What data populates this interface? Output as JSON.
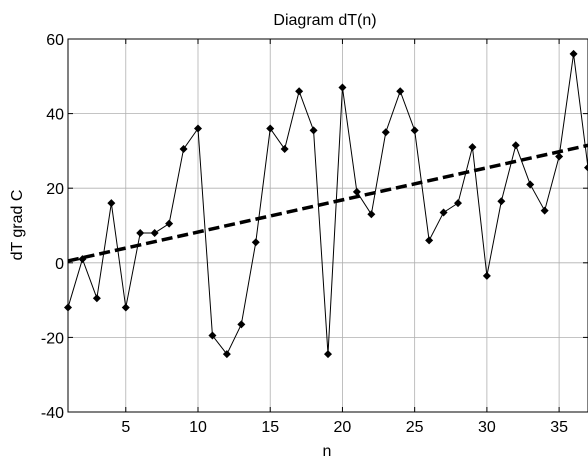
{
  "chart_data": {
    "type": "line",
    "title": "Diagram dT(n)",
    "xlabel": "n",
    "ylabel": "dT grad C",
    "xlim": [
      1,
      37
    ],
    "ylim": [
      -40,
      60
    ],
    "xticks": [
      5,
      10,
      15,
      20,
      25,
      30,
      35
    ],
    "yticks": [
      -40,
      -20,
      0,
      20,
      40,
      60
    ],
    "grid": true,
    "legend": false,
    "series": [
      {
        "style": "solid-with-diamond-markers",
        "color": "#000000",
        "x": [
          1,
          2,
          3,
          4,
          5,
          6,
          7,
          8,
          9,
          10,
          11,
          12,
          13,
          14,
          15,
          16,
          17,
          18,
          19,
          20,
          21,
          22,
          23,
          24,
          25,
          26,
          27,
          28,
          29,
          30,
          31,
          32,
          33,
          34,
          35,
          36,
          37
        ],
        "y": [
          -12,
          1,
          -9.5,
          16,
          -12,
          8,
          8,
          10.5,
          30.5,
          36,
          -19.5,
          -24.5,
          -16.5,
          5.5,
          36,
          30.5,
          46,
          35.5,
          -24.5,
          47,
          19,
          13,
          35,
          46,
          35.5,
          6,
          13.5,
          16,
          31,
          -3.5,
          16.5,
          31.5,
          21,
          14,
          28.5,
          56,
          25.5
        ]
      },
      {
        "style": "dashed-trend",
        "color": "#000000",
        "x": [
          1,
          37
        ],
        "y": [
          0.5,
          31.5
        ]
      }
    ]
  }
}
